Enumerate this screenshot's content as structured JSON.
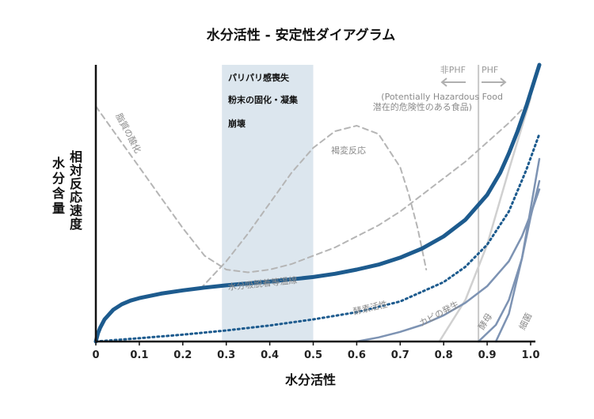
{
  "title": "水分活性 - 安定性ダイアグラム",
  "chart_data": {
    "type": "line",
    "title": "水分活性 - 安定性ダイアグラム",
    "xlabel": "水分活性",
    "ylabel_left": [
      "水",
      "分",
      "含",
      "量"
    ],
    "ylabel_right": [
      "相",
      "対",
      "反",
      "応",
      "速",
      "度"
    ],
    "xlim": [
      0,
      1.02
    ],
    "ylim": [
      0,
      100
    ],
    "x_ticks": [
      "0",
      "0.1",
      "0.2",
      "0.3",
      "0.4",
      "0.5",
      "0.6",
      "0.7",
      "0.8",
      "0.9",
      "1.0"
    ],
    "grid": false,
    "shaded_region": {
      "x": [
        0.29,
        0.5
      ],
      "labels": [
        "パリパリ感喪失",
        "粉末の固化・凝集",
        "崩壊"
      ],
      "color": "#dce6ee"
    },
    "phf_line": {
      "x": 0.88,
      "left_label": "非PHF",
      "right_label": "PHF",
      "note_line1": "(Potentially Hazardous Food",
      "note_line2": "潜在的危険性のある食品)"
    },
    "series": [
      {
        "name": "水分吸脱着等温線",
        "style": "solid-thick",
        "color": "#1d5b8e",
        "x": [
          0,
          0.005,
          0.01,
          0.02,
          0.04,
          0.06,
          0.08,
          0.1,
          0.15,
          0.2,
          0.25,
          0.3,
          0.35,
          0.4,
          0.45,
          0.5,
          0.55,
          0.6,
          0.65,
          0.7,
          0.75,
          0.8,
          0.85,
          0.9,
          0.93,
          0.95,
          0.97,
          0.99,
          1.0,
          1.01,
          1.02
        ],
        "y": [
          0,
          3,
          5,
          8,
          11.5,
          13.5,
          14.8,
          15.7,
          17.3,
          18.5,
          19.5,
          20.3,
          21.0,
          21.7,
          22.5,
          23.3,
          24.5,
          26.0,
          27.8,
          30.3,
          33.6,
          38.0,
          44.0,
          53.0,
          61.0,
          68.0,
          76.0,
          85.0,
          90.0,
          95.0,
          100.0
        ]
      },
      {
        "name": "酵素活性",
        "style": "dotted",
        "color": "#1d5b8e",
        "x": [
          0,
          0.1,
          0.2,
          0.3,
          0.4,
          0.5,
          0.6,
          0.7,
          0.8,
          0.85,
          0.9,
          0.95,
          0.99,
          1.02
        ],
        "y": [
          0,
          1.2,
          2.5,
          4,
          5.8,
          8,
          10.6,
          14.5,
          21.5,
          27,
          35,
          47,
          62,
          75
        ]
      },
      {
        "name": "褐変反応",
        "style": "dashed",
        "color": "#b5b5b5",
        "x": [
          0.24,
          0.3,
          0.35,
          0.4,
          0.45,
          0.5,
          0.55,
          0.6,
          0.65,
          0.7,
          0.72,
          0.74,
          0.76
        ],
        "y": [
          19,
          29,
          39,
          50,
          61,
          70,
          76,
          78,
          75,
          63,
          53,
          41,
          26
        ]
      },
      {
        "name": "脂質の酸化",
        "style": "dashed",
        "color": "#b5b5b5",
        "x": [
          0,
          0.05,
          0.1,
          0.15,
          0.2,
          0.25,
          0.3,
          0.35,
          0.4,
          0.45,
          0.5,
          0.55,
          0.6,
          0.65,
          0.7,
          0.75,
          0.8,
          0.85,
          0.9,
          0.95,
          1.0
        ],
        "y": [
          85,
          74,
          63,
          52,
          41,
          31,
          26,
          25,
          26,
          28,
          31,
          34,
          38,
          42,
          47,
          53,
          59,
          65,
          72,
          79,
          87
        ]
      },
      {
        "name": "カビの発生",
        "style": "solid",
        "color": "#7d93b3",
        "x": [
          0.6,
          0.65,
          0.7,
          0.75,
          0.8,
          0.85,
          0.9,
          0.95,
          0.98,
          1.0,
          1.02
        ],
        "y": [
          0,
          1.5,
          3.5,
          6,
          9.5,
          14,
          20,
          29,
          38,
          46,
          55
        ]
      },
      {
        "name": "酵母",
        "style": "solid",
        "color": "#7d93b3",
        "x": [
          0.88,
          0.92,
          0.95,
          0.98,
          1.0,
          1.02
        ],
        "y": [
          0,
          6,
          15,
          30,
          45,
          58
        ]
      },
      {
        "name": "細菌",
        "style": "solid",
        "color": "#7d93b3",
        "x": [
          0.92,
          0.95,
          0.98,
          1.0,
          1.02
        ],
        "y": [
          0,
          10,
          30,
          48,
          66
        ]
      },
      {
        "name": "phf-boundary",
        "style": "solid",
        "color": "#d0d0d0",
        "x": [
          0.79,
          0.85,
          0.9,
          0.95,
          1.0
        ],
        "y": [
          0,
          15,
          35,
          62,
          88
        ]
      }
    ]
  },
  "colors": {
    "isotherm": "#1d5b8e",
    "enzyme": "#1d5b8e",
    "microbe": "#7d93b3",
    "dashed": "#b5b5b5",
    "shade": "#dce6ee",
    "axis": "#111111"
  }
}
